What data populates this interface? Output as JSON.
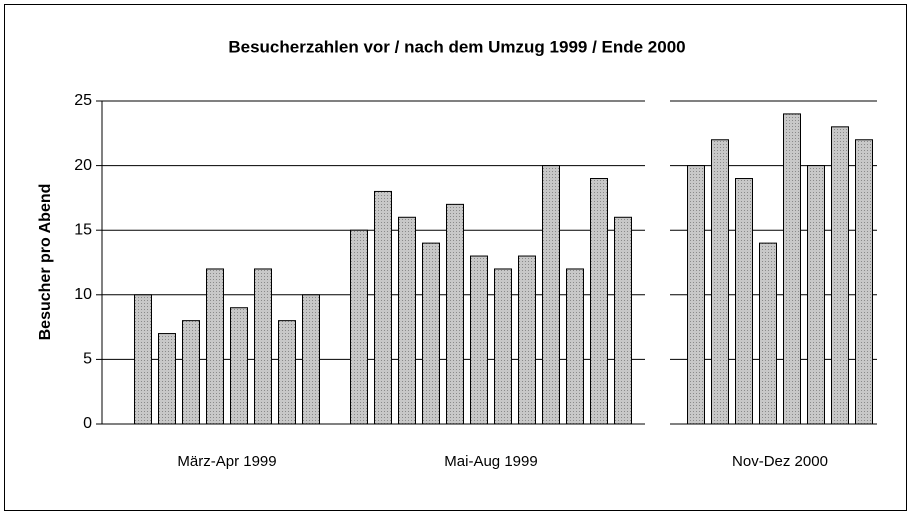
{
  "chart_data": {
    "type": "bar",
    "title": "Besucherzahlen vor / nach dem Umzug 1999 / Ende 2000",
    "y_label": "Besucher pro Abend",
    "groups": [
      {
        "label": "März-Apr 1999",
        "values": [
          10,
          7,
          8,
          12,
          9,
          12,
          8,
          10
        ]
      },
      {
        "label": "Mai-Aug 1999",
        "values": [
          15,
          18,
          16,
          14,
          17,
          13,
          12,
          13,
          20,
          12,
          19,
          16
        ]
      },
      {
        "label": "Nov-Dez 2000",
        "values": [
          20,
          22,
          19,
          14,
          24,
          20,
          23,
          22
        ]
      }
    ],
    "color": "#b8b8b8",
    "ylim": [
      0,
      25
    ],
    "yticks": [
      0,
      5,
      10,
      15,
      20,
      25
    ],
    "grid": true
  }
}
